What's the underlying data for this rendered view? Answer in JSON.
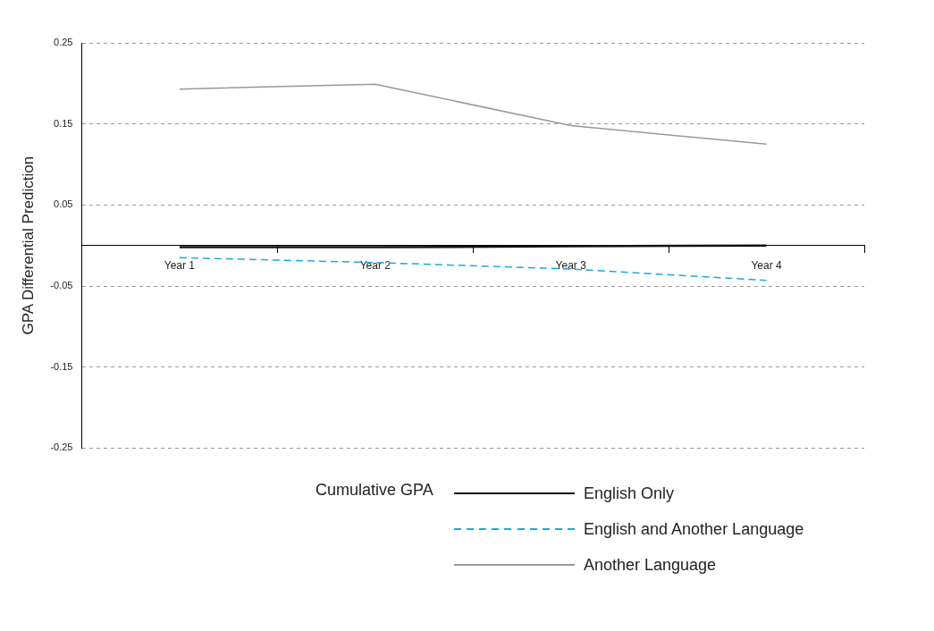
{
  "chart_data": {
    "type": "line",
    "ylabel": "GPA Differential Prediction",
    "legend_title": "Cumulative GPA",
    "legend": "bottom",
    "grid": "y",
    "marker": "none",
    "categories": [
      "Year 1",
      "Year 2",
      "Year 3",
      "Year 4"
    ],
    "ylim": [
      -0.25,
      0.25
    ],
    "yticks": [
      -0.25,
      -0.15,
      -0.05,
      0.05,
      0.15,
      0.25
    ],
    "series": [
      {
        "name": "English Only",
        "color": "#111111",
        "line_style": "solid",
        "values": [
          -0.002,
          -0.002,
          -0.001,
          0
        ]
      },
      {
        "name": "English and Another Language",
        "color": "#1aa8e0",
        "line_style": "dashed",
        "values": [
          -0.015,
          -0.021,
          -0.029,
          -0.043
        ]
      },
      {
        "name": "Another Language",
        "color": "#999999",
        "line_style": "solid",
        "values": [
          0.193,
          0.199,
          0.148,
          0.125
        ]
      }
    ]
  }
}
